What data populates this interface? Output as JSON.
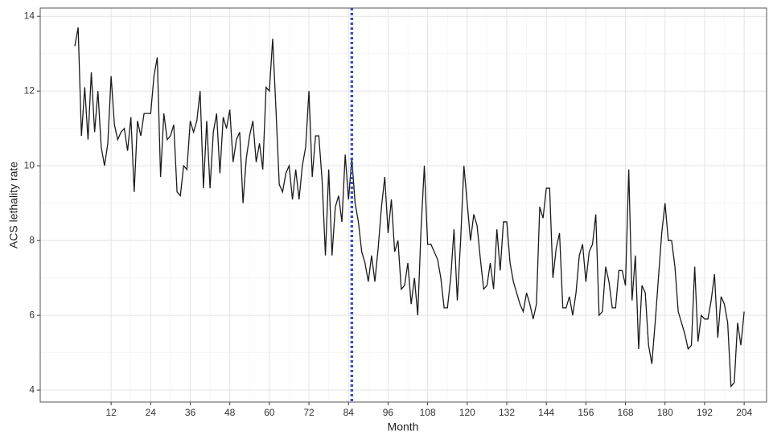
{
  "chart_data": {
    "type": "line",
    "xlabel": "Month",
    "ylabel": "ACS lethality rate",
    "x": [
      1,
      2,
      3,
      4,
      5,
      6,
      7,
      8,
      9,
      10,
      11,
      12,
      13,
      14,
      15,
      16,
      17,
      18,
      19,
      20,
      21,
      22,
      23,
      24,
      25,
      26,
      27,
      28,
      29,
      30,
      31,
      32,
      33,
      34,
      35,
      36,
      37,
      38,
      39,
      40,
      41,
      42,
      43,
      44,
      45,
      46,
      47,
      48,
      49,
      50,
      51,
      52,
      53,
      54,
      55,
      56,
      57,
      58,
      59,
      60,
      61,
      62,
      63,
      64,
      65,
      66,
      67,
      68,
      69,
      70,
      71,
      72,
      73,
      74,
      75,
      76,
      77,
      78,
      79,
      80,
      81,
      82,
      83,
      84,
      85,
      86,
      87,
      88,
      89,
      90,
      91,
      92,
      93,
      94,
      95,
      96,
      97,
      98,
      99,
      100,
      101,
      102,
      103,
      104,
      105,
      106,
      107,
      108,
      109,
      110,
      111,
      112,
      113,
      114,
      115,
      116,
      117,
      118,
      119,
      120,
      121,
      122,
      123,
      124,
      125,
      126,
      127,
      128,
      129,
      130,
      131,
      132,
      133,
      134,
      135,
      136,
      137,
      138,
      139,
      140,
      141,
      142,
      143,
      144,
      145,
      146,
      147,
      148,
      149,
      150,
      151,
      152,
      153,
      154,
      155,
      156,
      157,
      158,
      159,
      160,
      161,
      162,
      163,
      164,
      165,
      166,
      167,
      168,
      169,
      170,
      171,
      172,
      173,
      174,
      175,
      176,
      177,
      178,
      179,
      180,
      181,
      182,
      183,
      184,
      185,
      186,
      187,
      188,
      189,
      190,
      191,
      192,
      193,
      194,
      195,
      196,
      197,
      198,
      199,
      200,
      201,
      202,
      203,
      204
    ],
    "values": [
      13.2,
      13.7,
      10.8,
      12.1,
      10.7,
      12.5,
      10.9,
      12.0,
      10.5,
      10.0,
      10.6,
      12.4,
      11.1,
      10.7,
      10.9,
      11.0,
      10.4,
      11.3,
      9.3,
      11.2,
      10.8,
      11.4,
      11.4,
      11.4,
      12.4,
      12.9,
      9.7,
      11.4,
      10.7,
      10.8,
      11.1,
      9.3,
      9.2,
      10.0,
      9.9,
      11.2,
      10.9,
      11.2,
      12.0,
      9.4,
      11.2,
      9.4,
      10.9,
      11.4,
      9.8,
      11.3,
      11.0,
      11.5,
      10.1,
      10.7,
      10.9,
      9.0,
      10.2,
      10.8,
      11.2,
      10.1,
      10.6,
      9.9,
      12.1,
      12.0,
      13.4,
      11.5,
      9.5,
      9.3,
      9.8,
      10.0,
      9.1,
      9.9,
      9.1,
      10.0,
      10.5,
      12.0,
      9.7,
      10.8,
      10.8,
      9.6,
      7.6,
      9.9,
      7.6,
      8.9,
      9.2,
      8.5,
      10.3,
      9.1,
      10.2,
      9.0,
      8.5,
      7.7,
      7.4,
      6.9,
      7.6,
      6.9,
      7.8,
      8.9,
      9.7,
      8.2,
      9.1,
      7.7,
      8.0,
      6.7,
      6.8,
      7.4,
      6.3,
      7.0,
      6.0,
      8.3,
      10.0,
      7.9,
      7.9,
      7.7,
      7.5,
      7.0,
      6.2,
      6.2,
      7.0,
      8.3,
      6.4,
      8.0,
      10.0,
      9.0,
      8.0,
      8.7,
      8.4,
      7.5,
      6.7,
      6.8,
      7.4,
      6.7,
      8.3,
      7.2,
      8.5,
      8.5,
      7.4,
      6.9,
      6.6,
      6.3,
      6.1,
      6.6,
      6.3,
      5.9,
      6.3,
      8.9,
      8.6,
      9.4,
      9.4,
      7.0,
      7.8,
      8.2,
      6.2,
      6.2,
      6.5,
      6.0,
      6.6,
      7.6,
      7.9,
      6.9,
      7.7,
      7.9,
      8.7,
      6.0,
      6.1,
      7.3,
      6.9,
      6.2,
      6.2,
      7.2,
      7.2,
      6.8,
      9.9,
      6.4,
      7.6,
      5.1,
      6.8,
      6.6,
      5.2,
      4.7,
      5.8,
      7.0,
      8.2,
      9.0,
      8.0,
      8.0,
      7.3,
      6.1,
      5.8,
      5.5,
      5.1,
      5.2,
      7.3,
      5.3,
      6.0,
      5.9,
      5.9,
      6.4,
      7.1,
      5.4,
      6.5,
      6.3,
      5.8,
      4.1,
      4.2,
      5.8,
      5.2,
      6.1
    ],
    "color": "#1a1a1a",
    "vline": {
      "x": 85,
      "color": "#3a4fc0"
    },
    "xlim": [
      -9.5,
      210.8
    ],
    "ylim": [
      3.68,
      14.22
    ],
    "xticks": [
      12,
      24,
      36,
      48,
      60,
      72,
      84,
      96,
      108,
      120,
      132,
      144,
      156,
      168,
      180,
      192,
      204
    ],
    "yticks": [
      4,
      6,
      8,
      10,
      12,
      14
    ],
    "grid": true,
    "minor_grid": true
  }
}
